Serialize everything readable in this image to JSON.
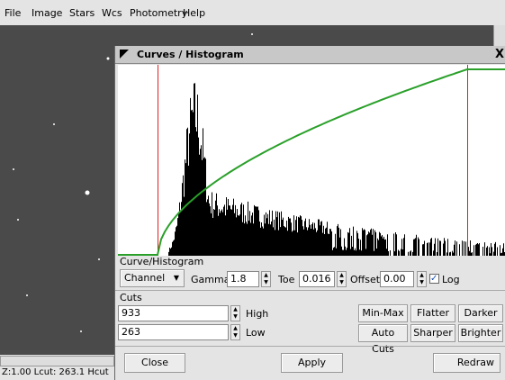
{
  "menu": [
    "File",
    "Image",
    "Stars",
    "Wcs",
    "Photometry",
    "Help"
  ],
  "dialog": {
    "title": "Curves / Histogram",
    "close": "X",
    "curve_section": "Curve/Histogram",
    "channel": "Channel",
    "gamma": {
      "label": "Gamma",
      "value": "1.8"
    },
    "toe": {
      "label": "Toe",
      "value": "0.016"
    },
    "offset": {
      "label": "Offset",
      "value": "0.00"
    },
    "log": {
      "label": "Log",
      "checked": true
    },
    "cuts_section": "Cuts",
    "high": {
      "label": "High",
      "value": "933"
    },
    "low": {
      "label": "Low",
      "value": "263"
    },
    "buttons": [
      "Min-Max",
      "Flatter",
      "Darker",
      "Auto Cuts",
      "Sharper",
      "Brighter"
    ],
    "footer": [
      "Close",
      "Apply",
      "Redraw"
    ]
  },
  "status": "Z:1.00 Lcut: 263.1 Hcut"
}
